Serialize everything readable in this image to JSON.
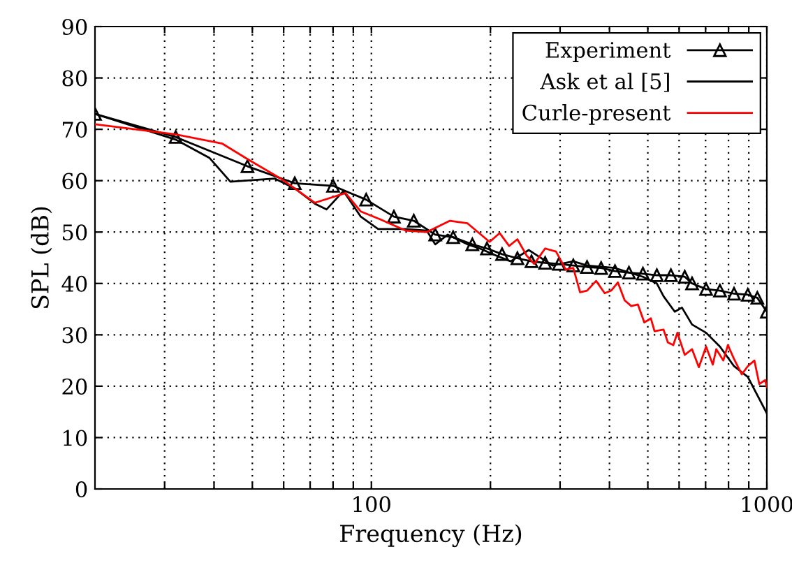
{
  "chart_data": {
    "type": "line",
    "xlabel": "Frequency (Hz)",
    "ylabel": "SPL (dB)",
    "log": "x",
    "xlim": [
      20,
      1000
    ],
    "ylim": [
      0,
      90
    ],
    "xticks": [
      {
        "value": 30,
        "label": null
      },
      {
        "value": 40,
        "label": null
      },
      {
        "value": 50,
        "label": null
      },
      {
        "value": 60,
        "label": null
      },
      {
        "value": 70,
        "label": null
      },
      {
        "value": 80,
        "label": null
      },
      {
        "value": 90,
        "label": null
      },
      100,
      {
        "value": 200,
        "label": null
      },
      {
        "value": 300,
        "label": null
      },
      {
        "value": 400,
        "label": null
      },
      {
        "value": 500,
        "label": null
      },
      {
        "value": 600,
        "label": null
      },
      {
        "value": 700,
        "label": null
      },
      {
        "value": 800,
        "label": null
      },
      {
        "value": 900,
        "label": null
      },
      1000
    ],
    "yticks": [
      0,
      10,
      20,
      30,
      40,
      50,
      60,
      70,
      80,
      90
    ],
    "grid": true,
    "legend": "top right",
    "line_style": "solid",
    "series": [
      {
        "name": "Experiment",
        "color": "#000000",
        "marker": "triangle",
        "x": [
          20,
          32,
          48.6,
          64,
          80,
          97,
          114,
          128,
          145,
          161,
          180,
          196,
          214,
          234,
          254,
          275,
          298,
          324,
          351,
          381,
          413,
          448,
          486,
          527,
          572,
          620,
          647,
          702,
          761,
          826,
          895,
          946,
          1000
        ],
        "values": [
          73,
          68.5,
          62.8,
          59.5,
          59,
          56.3,
          53,
          52.2,
          49.5,
          49,
          47.6,
          46.8,
          45.7,
          44.9,
          44.3,
          44,
          43.8,
          43.5,
          43.2,
          43,
          42.4,
          42.1,
          41.9,
          41.6,
          41.6,
          41.3,
          40,
          38.9,
          38.6,
          38,
          37.8,
          37.2,
          34.5
        ]
      },
      {
        "name": "Ask et al [5]",
        "color": "#000000",
        "marker": "none",
        "x": [
          20,
          32,
          39,
          44,
          57,
          64,
          72,
          77,
          85,
          94,
          104,
          122,
          138,
          145,
          156,
          175,
          188,
          207,
          225,
          250,
          287,
          324,
          351,
          413,
          486,
          527,
          548,
          585,
          610,
          647,
          702,
          761,
          826,
          895,
          1000
        ],
        "values": [
          73,
          68,
          64.4,
          59.8,
          60.4,
          58.5,
          55.5,
          54.4,
          58,
          53,
          50.6,
          50.6,
          50.3,
          47.6,
          49.5,
          47.6,
          46.8,
          45.4,
          44.3,
          46.5,
          43.5,
          44.3,
          43.5,
          43,
          41.3,
          40,
          37.5,
          34.5,
          35.3,
          32,
          30.4,
          27.7,
          23.9,
          21.8,
          14.7
        ]
      },
      {
        "name": "Curle-present",
        "color": "#ff0000",
        "marker": "none",
        "x": [
          20,
          32,
          42,
          48.6,
          59,
          72,
          86,
          94,
          105,
          122,
          138,
          158,
          175,
          199,
          211,
          223,
          234,
          247,
          258,
          275,
          293,
          310,
          324,
          337,
          351,
          370,
          389,
          404,
          420,
          437,
          454,
          472,
          490,
          509,
          520,
          548,
          562,
          580,
          594,
          620,
          647,
          673,
          702,
          730,
          745,
          776,
          797,
          826,
          864,
          895,
          930,
          957,
          990,
          1000
        ],
        "values": [
          71,
          69,
          67.2,
          64.2,
          60.4,
          55.7,
          57.6,
          54,
          52.5,
          50.3,
          50,
          52.2,
          51.7,
          48.1,
          49.8,
          47.3,
          48.6,
          45.4,
          43.8,
          46.8,
          46.2,
          42.7,
          43,
          38.3,
          38.6,
          40.5,
          38.1,
          38.6,
          40.2,
          36.7,
          35.6,
          35.9,
          32.4,
          33.2,
          30.7,
          31,
          28.5,
          28,
          30.4,
          26.1,
          27.2,
          23.7,
          27.7,
          24.2,
          27.2,
          25,
          28,
          25.3,
          22.3,
          23.9,
          25,
          20.4,
          21.2,
          19.8
        ]
      }
    ]
  }
}
